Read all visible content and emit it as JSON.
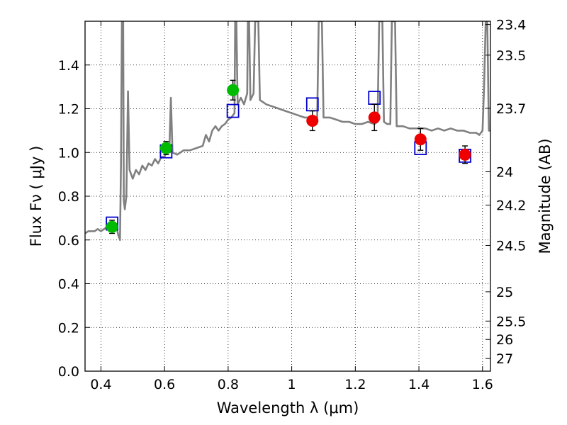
{
  "chart_data": {
    "type": "scatter",
    "xlabel": "Wavelength  λ (μm)",
    "ylabel": "Flux  Fν  ( μJy )",
    "ylabel_right": "Magnitude (AB)",
    "xlim": [
      0.35,
      1.625
    ],
    "ylim": [
      0.0,
      1.6
    ],
    "grid": true,
    "x_ticks": [
      0.4,
      0.6,
      0.8,
      1.0,
      1.2,
      1.4,
      1.6
    ],
    "x_tick_labels": [
      "0.4",
      "0.6",
      "0.8",
      "1",
      "1.2",
      "1.4",
      "1.6"
    ],
    "y_ticks": [
      0.0,
      0.2,
      0.4,
      0.6,
      0.8,
      1.0,
      1.2,
      1.4
    ],
    "y_tick_labels": [
      "0.0",
      "0.2",
      "0.4",
      "0.6",
      "0.8",
      "1.0",
      "1.2",
      "1.4"
    ],
    "right_ticks": [
      {
        "label": "23.4",
        "flux": 1.585
      },
      {
        "label": "23.5",
        "flux": 1.445
      },
      {
        "label": "23.7",
        "flux": 1.202
      },
      {
        "label": "24",
        "flux": 0.912
      },
      {
        "label": "24.2",
        "flux": 0.759
      },
      {
        "label": "24.5",
        "flux": 0.575
      },
      {
        "label": "25",
        "flux": 0.363
      },
      {
        "label": "25.5",
        "flux": 0.229
      },
      {
        "label": "26",
        "flux": 0.145
      },
      {
        "label": "27",
        "flux": 0.058
      }
    ],
    "series": [
      {
        "color": "#808080",
        "marker": "line",
        "points": [
          [
            0.35,
            0.63
          ],
          [
            0.36,
            0.64
          ],
          [
            0.37,
            0.64
          ],
          [
            0.38,
            0.64
          ],
          [
            0.39,
            0.65
          ],
          [
            0.4,
            0.64
          ],
          [
            0.41,
            0.65
          ],
          [
            0.42,
            0.66
          ],
          [
            0.43,
            0.65
          ],
          [
            0.44,
            0.66
          ],
          [
            0.45,
            0.65
          ],
          [
            0.455,
            0.62
          ],
          [
            0.46,
            0.6
          ],
          [
            0.463,
            0.95
          ],
          [
            0.466,
            1.6
          ],
          [
            0.47,
            1.6
          ],
          [
            0.472,
            0.78
          ],
          [
            0.475,
            0.74
          ],
          [
            0.48,
            0.8
          ],
          [
            0.485,
            1.28
          ],
          [
            0.49,
            0.92
          ],
          [
            0.5,
            0.88
          ],
          [
            0.51,
            0.92
          ],
          [
            0.52,
            0.9
          ],
          [
            0.53,
            0.94
          ],
          [
            0.54,
            0.92
          ],
          [
            0.55,
            0.95
          ],
          [
            0.56,
            0.94
          ],
          [
            0.57,
            0.97
          ],
          [
            0.58,
            0.95
          ],
          [
            0.59,
            0.98
          ],
          [
            0.6,
            0.98
          ],
          [
            0.61,
            1.03
          ],
          [
            0.615,
            1.0
          ],
          [
            0.62,
            1.25
          ],
          [
            0.625,
            1.0
          ],
          [
            0.64,
            0.99
          ],
          [
            0.66,
            1.01
          ],
          [
            0.68,
            1.01
          ],
          [
            0.7,
            1.02
          ],
          [
            0.72,
            1.03
          ],
          [
            0.73,
            1.08
          ],
          [
            0.74,
            1.05
          ],
          [
            0.75,
            1.1
          ],
          [
            0.76,
            1.12
          ],
          [
            0.77,
            1.1
          ],
          [
            0.78,
            1.12
          ],
          [
            0.79,
            1.13
          ],
          [
            0.8,
            1.15
          ],
          [
            0.81,
            1.16
          ],
          [
            0.82,
            1.18
          ],
          [
            0.822,
            1.6
          ],
          [
            0.826,
            1.6
          ],
          [
            0.83,
            1.22
          ],
          [
            0.84,
            1.25
          ],
          [
            0.85,
            1.22
          ],
          [
            0.86,
            1.27
          ],
          [
            0.862,
            1.6
          ],
          [
            0.866,
            1.6
          ],
          [
            0.87,
            1.24
          ],
          [
            0.88,
            1.27
          ],
          [
            0.885,
            1.6
          ],
          [
            0.895,
            1.6
          ],
          [
            0.9,
            1.24
          ],
          [
            0.92,
            1.22
          ],
          [
            0.94,
            1.21
          ],
          [
            0.96,
            1.2
          ],
          [
            0.98,
            1.19
          ],
          [
            1.0,
            1.18
          ],
          [
            1.02,
            1.17
          ],
          [
            1.04,
            1.16
          ],
          [
            1.06,
            1.16
          ],
          [
            1.08,
            1.15
          ],
          [
            1.085,
            1.6
          ],
          [
            1.095,
            1.6
          ],
          [
            1.1,
            1.16
          ],
          [
            1.12,
            1.16
          ],
          [
            1.14,
            1.15
          ],
          [
            1.16,
            1.14
          ],
          [
            1.18,
            1.14
          ],
          [
            1.2,
            1.13
          ],
          [
            1.22,
            1.13
          ],
          [
            1.24,
            1.14
          ],
          [
            1.26,
            1.13
          ],
          [
            1.27,
            1.14
          ],
          [
            1.275,
            1.6
          ],
          [
            1.285,
            1.6
          ],
          [
            1.29,
            1.14
          ],
          [
            1.3,
            1.13
          ],
          [
            1.31,
            1.13
          ],
          [
            1.315,
            1.6
          ],
          [
            1.325,
            1.6
          ],
          [
            1.33,
            1.12
          ],
          [
            1.35,
            1.12
          ],
          [
            1.37,
            1.11
          ],
          [
            1.4,
            1.11
          ],
          [
            1.42,
            1.11
          ],
          [
            1.44,
            1.1
          ],
          [
            1.46,
            1.11
          ],
          [
            1.48,
            1.1
          ],
          [
            1.5,
            1.11
          ],
          [
            1.52,
            1.1
          ],
          [
            1.54,
            1.1
          ],
          [
            1.56,
            1.09
          ],
          [
            1.58,
            1.09
          ],
          [
            1.59,
            1.08
          ],
          [
            1.6,
            1.1
          ],
          [
            1.605,
            1.3
          ],
          [
            1.61,
            1.6
          ],
          [
            1.615,
            1.6
          ],
          [
            1.62,
            1.1
          ],
          [
            1.625,
            1.1
          ]
        ]
      },
      {
        "color": "#0000cc",
        "marker": "open-square",
        "points": [
          [
            0.435,
            0.675
          ],
          [
            0.605,
            1.005
          ],
          [
            0.815,
            1.19
          ],
          [
            1.065,
            1.22
          ],
          [
            1.26,
            1.25
          ],
          [
            1.405,
            1.02
          ],
          [
            1.545,
            0.985
          ]
        ]
      },
      {
        "color": "#00bb00",
        "marker": "filled-circle",
        "points": [
          {
            "x": 0.435,
            "y": 0.66,
            "err": 0.03
          },
          {
            "x": 0.605,
            "y": 1.02,
            "err": 0.03
          },
          {
            "x": 0.815,
            "y": 1.285,
            "err": 0.045
          }
        ]
      },
      {
        "color": "#ee0000",
        "marker": "filled-circle",
        "points": [
          {
            "x": 1.065,
            "y": 1.145,
            "err": 0.045
          },
          {
            "x": 1.26,
            "y": 1.16,
            "err": 0.06
          },
          {
            "x": 1.405,
            "y": 1.06,
            "err": 0.05
          },
          {
            "x": 1.545,
            "y": 0.99,
            "err": 0.04
          }
        ]
      }
    ]
  }
}
